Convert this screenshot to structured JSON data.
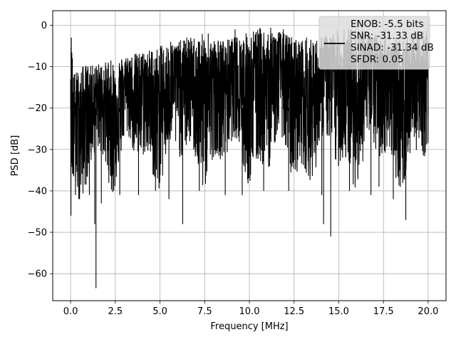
{
  "chart_data": {
    "type": "line",
    "title": "",
    "xlabel": "Frequency [MHz]",
    "ylabel": "PSD [dB]",
    "xlim": [
      -1.0,
      21.0
    ],
    "ylim": [
      -66.5,
      3.5
    ],
    "xticks": [
      0.0,
      2.5,
      5.0,
      7.5,
      10.0,
      12.5,
      15.0,
      17.5,
      20.0
    ],
    "xtick_labels": [
      "0.0",
      "2.5",
      "5.0",
      "7.5",
      "10.0",
      "12.5",
      "15.0",
      "17.5",
      "20.0"
    ],
    "yticks": [
      0,
      -10,
      -20,
      -30,
      -40,
      -50,
      -60
    ],
    "ytick_labels": [
      "0",
      "−10",
      "−20",
      "−30",
      "−40",
      "−50",
      "−60"
    ],
    "grid": true,
    "legend_position": "top-right",
    "legend_lines": [
      "ENOB: -5.5 bits",
      "SNR: -31.33 dB",
      "SINAD: -31.34 dB",
      "SFDR: 0.05"
    ],
    "series": [
      {
        "color": "#000000",
        "description": "dense noisy PSD, upper envelope about -12 dB at 0 MHz rising to about -2 dB around 6-20 MHz; lower envelope mostly -30 to -38 dB",
        "values": [
          [
            0.0,
            -13
          ],
          [
            0.02,
            -46
          ],
          [
            0.04,
            -3
          ],
          [
            0.06,
            -28
          ],
          [
            0.1,
            -8
          ],
          [
            0.15,
            -36
          ],
          [
            0.2,
            -12
          ],
          [
            0.27,
            -41
          ],
          [
            0.35,
            -15
          ],
          [
            0.5,
            -42
          ],
          [
            0.7,
            -10
          ],
          [
            1.05,
            -41
          ],
          [
            1.2,
            -12
          ],
          [
            1.35,
            -48
          ],
          [
            1.42,
            -63.5
          ],
          [
            1.5,
            -12
          ],
          [
            1.72,
            -43
          ],
          [
            2.1,
            -9
          ],
          [
            2.75,
            -41
          ],
          [
            3.2,
            -8
          ],
          [
            3.8,
            -41
          ],
          [
            4.1,
            -7
          ],
          [
            4.75,
            -40
          ],
          [
            5.1,
            -5
          ],
          [
            5.5,
            -42
          ],
          [
            5.6,
            -4
          ],
          [
            6.27,
            -48
          ],
          [
            6.5,
            -3
          ],
          [
            7.2,
            -40
          ],
          [
            7.7,
            -2
          ],
          [
            8.65,
            -41
          ],
          [
            9.2,
            -1
          ],
          [
            9.6,
            -41
          ],
          [
            10.5,
            -2
          ],
          [
            10.8,
            -40
          ],
          [
            11.9,
            -1
          ],
          [
            12.2,
            -40
          ],
          [
            13.2,
            -3
          ],
          [
            14.05,
            -41
          ],
          [
            14.15,
            -48
          ],
          [
            14.3,
            -3
          ],
          [
            14.55,
            -51
          ],
          [
            15.3,
            -1
          ],
          [
            15.6,
            -40
          ],
          [
            16.2,
            -2
          ],
          [
            16.8,
            -41
          ],
          [
            17.25,
            -39
          ],
          [
            17.6,
            -1
          ],
          [
            18.05,
            -42
          ],
          [
            18.75,
            -47
          ],
          [
            19.2,
            -2
          ],
          [
            20.0,
            -22
          ]
        ]
      }
    ]
  }
}
